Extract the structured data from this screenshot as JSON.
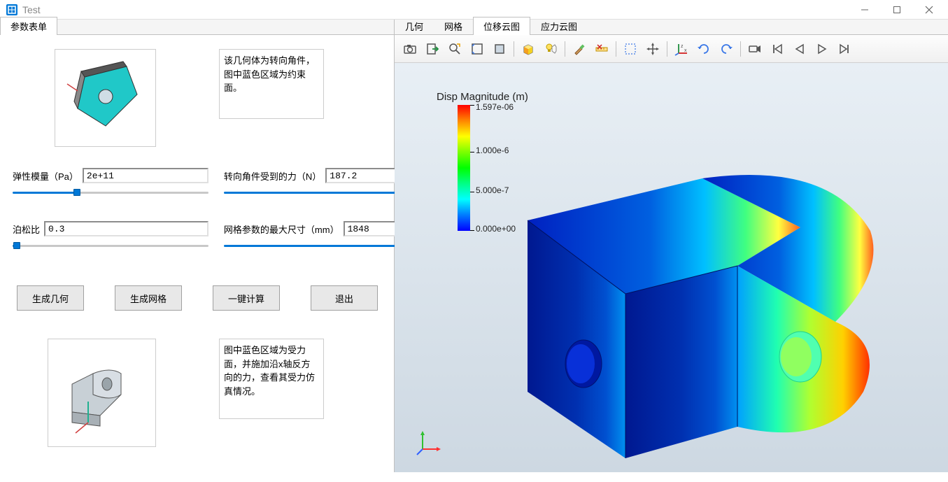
{
  "window": {
    "title": "Test",
    "icon_color": "#0078d7"
  },
  "left": {
    "tab_label": "参数表单",
    "desc1": "该几何体为转向角件，图中蓝色区域为约束面。",
    "desc2": "图中蓝色区域为受力面，并施加沿x轴反方向的力，查看其受力仿真情况。",
    "params": {
      "elastic_modulus": {
        "label": "弹性模量（Pa）",
        "value": "2e+11",
        "slider_pct": 33
      },
      "force": {
        "label": "转向角件受到的力（N）",
        "value": "187.2",
        "slider_pct": 90
      },
      "poisson": {
        "label": "泊松比",
        "value": "0.3",
        "slider_pct": 2
      },
      "mesh_size": {
        "label": "网格参数的最大尺寸（mm）",
        "value": "1848",
        "slider_pct": 92
      }
    },
    "buttons": {
      "gen_geom": "生成几何",
      "gen_mesh": "生成网格",
      "compute": "一键计算",
      "exit": "退出"
    }
  },
  "right": {
    "tabs": [
      "几何",
      "网格",
      "位移云图",
      "应力云图"
    ],
    "active_tab_index": 2,
    "toolbar_icons": [
      "camera",
      "export",
      "zoom-fit",
      "select-rect",
      "select-face",
      "sep",
      "box-grad",
      "lightbulb",
      "sep",
      "brush",
      "ruler-x",
      "sep",
      "rubber-band",
      "pan",
      "sep",
      "axis",
      "rotate-cw",
      "rotate-ccw",
      "sep",
      "record",
      "skip-start",
      "step-back",
      "play",
      "skip-end"
    ],
    "legend": {
      "title": "Disp Magnitude (m)",
      "max": "1.597e-06",
      "mid1": "1.000e-6",
      "mid2": "5.000e-7",
      "min": "0.000e+00",
      "gradient_stops": [
        "#ff0000",
        "#ff8000",
        "#ffff00",
        "#80ff00",
        "#00ff00",
        "#00ff80",
        "#00ffff",
        "#0080ff",
        "#0000ff"
      ]
    },
    "triad_colors": {
      "x": "#ff3030",
      "y": "#30c030",
      "z": "#3060ff"
    }
  }
}
